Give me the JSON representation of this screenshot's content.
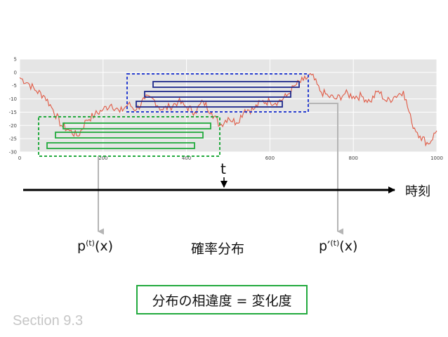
{
  "chart_data": {
    "type": "line",
    "xlim": [
      0,
      1000
    ],
    "ylim": [
      -30,
      5
    ],
    "x_ticks": [
      0,
      200,
      400,
      600,
      800,
      1000
    ],
    "y_ticks": [
      5,
      0,
      -5,
      -10,
      -15,
      -20,
      -25,
      -30
    ],
    "grid": true,
    "series": [
      {
        "color": "#e05a45",
        "x": [
          0,
          20,
          40,
          60,
          80,
          100,
          120,
          140,
          160,
          180,
          200,
          220,
          240,
          260,
          280,
          300,
          320,
          340,
          360,
          380,
          400,
          420,
          440,
          460,
          480,
          500,
          520,
          540,
          560,
          580,
          600,
          620,
          640,
          660,
          680,
          700,
          720,
          740,
          760,
          780,
          800,
          820,
          840,
          860,
          880,
          900,
          920,
          940,
          960,
          980,
          1000
        ],
        "values": [
          -2,
          -4,
          -7,
          -9,
          -14,
          -20,
          -22,
          -24,
          -18,
          -16,
          -14,
          -12,
          -15,
          -12,
          -14,
          -10,
          -10,
          -14,
          -13,
          -11,
          -13,
          -15,
          -11,
          -15,
          -20,
          -17,
          -19,
          -14,
          -14,
          -11,
          -11,
          -11,
          -9,
          -5,
          -3,
          -1,
          -7,
          -9,
          -10,
          -8,
          -9,
          -9,
          -11,
          -7,
          -11,
          -9,
          -7,
          -19,
          -24,
          -27,
          -22
        ]
      }
    ]
  },
  "labels": {
    "time_axis": "時刻",
    "t": "t",
    "p_base": "p",
    "p_sup": "(t)",
    "p_arg": "(x)",
    "distribution": "確率分布",
    "pp_base": "p′",
    "pp_sup": "(t)",
    "pp_arg": "(x)",
    "diff_box": "分布の相違度 = 変化度",
    "section": "Section 9.3"
  },
  "colors": {
    "plot_bg": "#e5e5e5",
    "past_window": "#22aa3e",
    "recent_window": "#1e2a8c",
    "recent_window_dashed": "#2a3fd0",
    "connector": "#b5b5b5"
  }
}
